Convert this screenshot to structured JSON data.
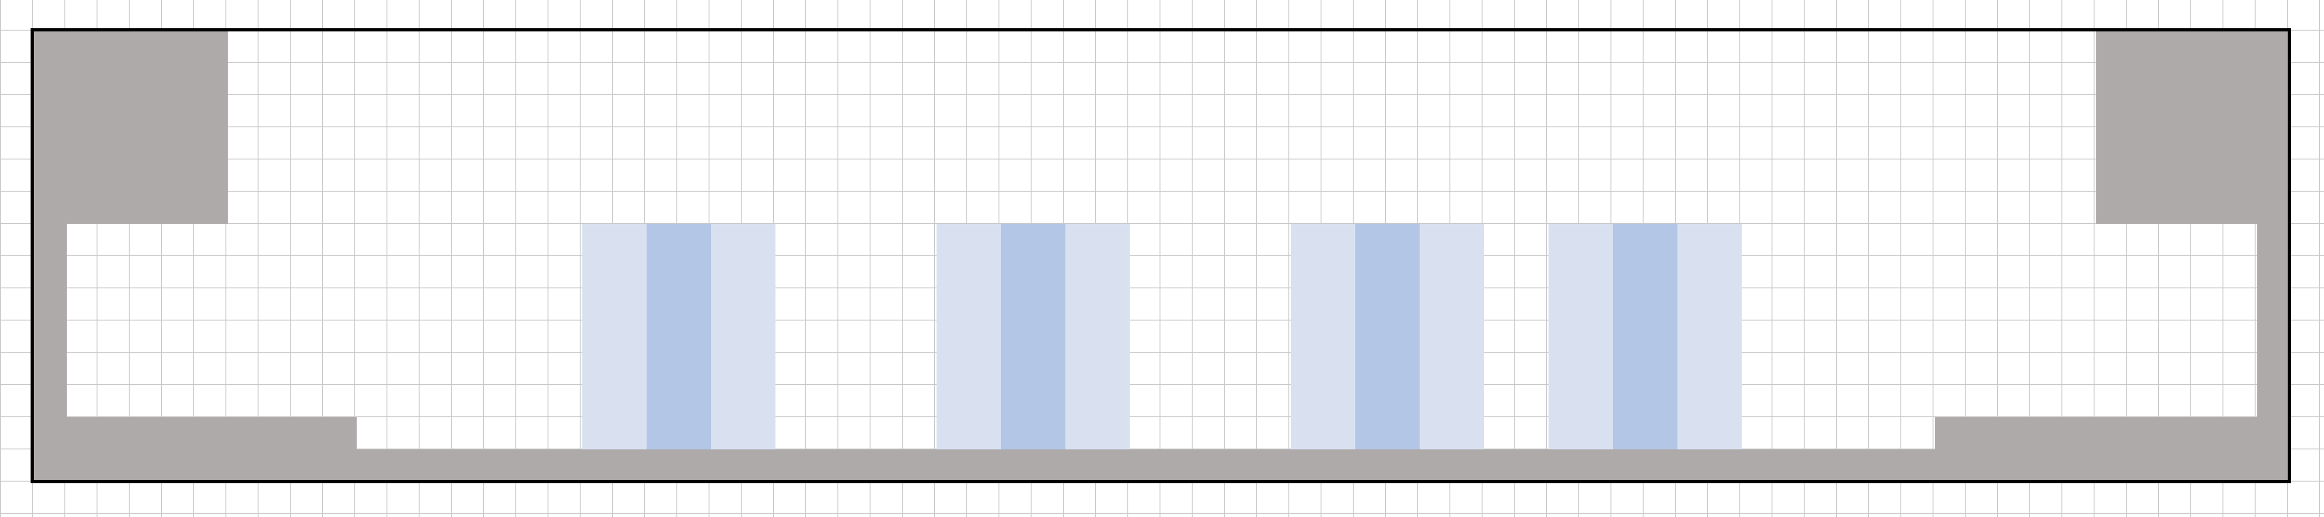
{
  "diagram": {
    "grid": {
      "visible": true,
      "color": "#c8c8c8"
    },
    "colors": {
      "background": "#ffffff",
      "wall": "#aeaaaa",
      "outline": "#000000",
      "column_light": "#d9e1f1",
      "column_dark": "#b3c6e6"
    },
    "column_groups": 4,
    "text_labels": []
  }
}
